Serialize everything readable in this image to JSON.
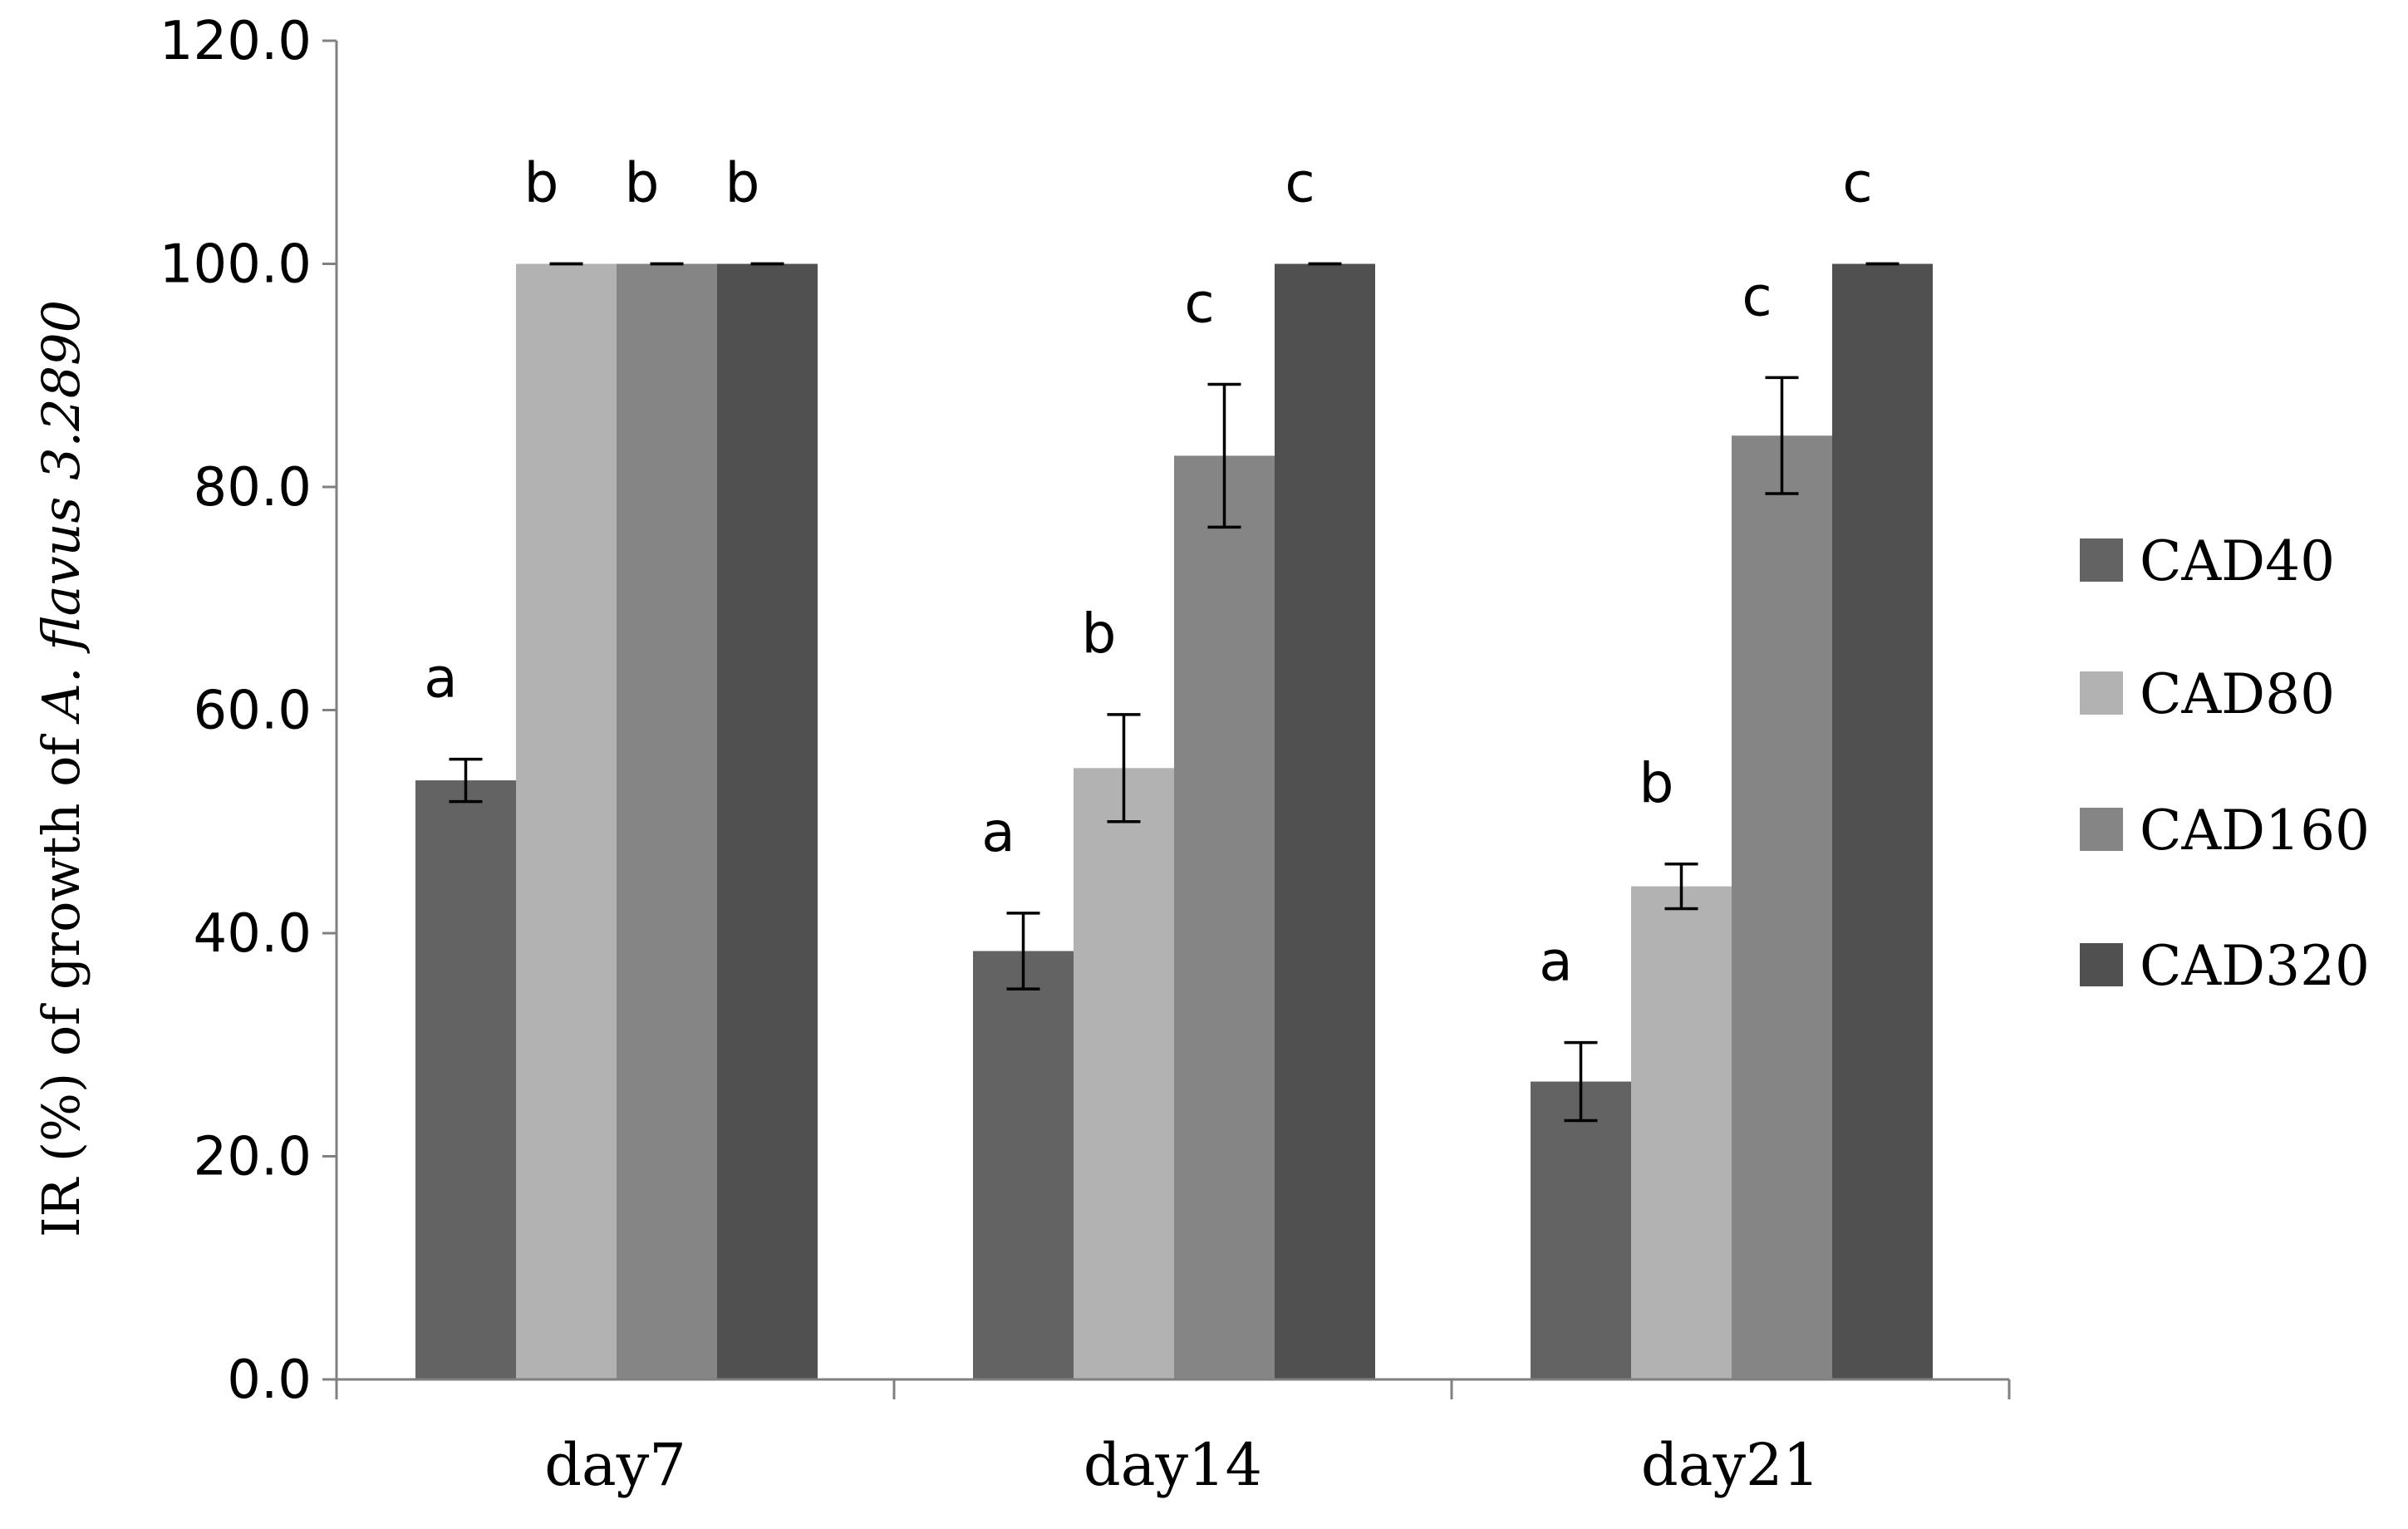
{
  "chart_data": {
    "type": "bar",
    "title": "",
    "xlabel": "",
    "ylabel": {
      "prefix": "IR (%) of growth of ",
      "species": "A. flavus",
      "suffix": " 3.2890"
    },
    "ylim": [
      0,
      120
    ],
    "yticks": [
      "0.0",
      "20.0",
      "40.0",
      "60.0",
      "80.0",
      "100.0",
      "120.0"
    ],
    "categories": [
      "day7",
      "day14",
      "day21"
    ],
    "series": [
      {
        "name": "CAD40",
        "color": "#636363",
        "values": [
          53.7,
          38.4,
          26.7
        ],
        "errors": [
          1.9,
          3.4,
          3.5
        ],
        "letters": [
          "a",
          "a",
          "a"
        ]
      },
      {
        "name": "CAD80",
        "color": "#b2b2b2",
        "values": [
          100.0,
          54.8,
          44.2
        ],
        "errors": [
          0,
          4.8,
          2.0
        ],
        "letters": [
          "b",
          "b",
          "b"
        ]
      },
      {
        "name": "CAD160",
        "color": "#858585",
        "values": [
          100.0,
          82.8,
          84.6
        ],
        "errors": [
          0,
          6.4,
          5.2
        ],
        "letters": [
          "b",
          "c",
          "c"
        ]
      },
      {
        "name": "CAD320",
        "color": "#505050",
        "values": [
          100.0,
          100.0,
          100.0
        ],
        "errors": [
          0,
          0,
          0
        ],
        "letters": [
          "b",
          "c",
          "c"
        ]
      }
    ],
    "legend": "right",
    "grid": false
  }
}
